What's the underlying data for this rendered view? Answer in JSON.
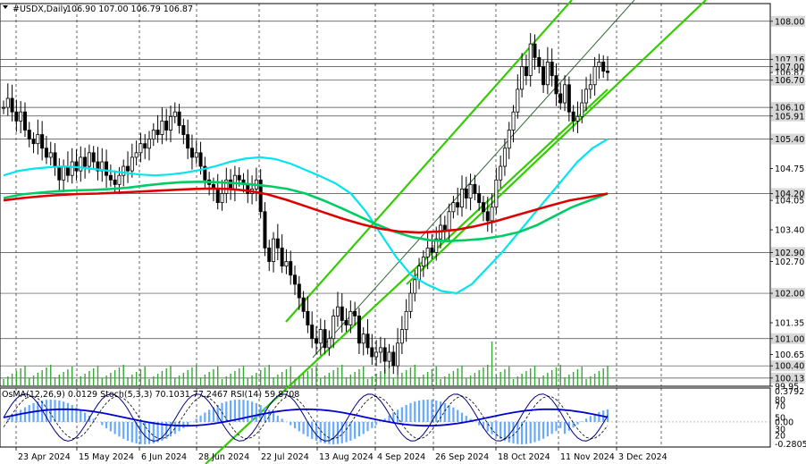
{
  "header": {
    "symbol": "#USDX,Daily",
    "ohlc": "106.90 107.00 106.79 106.87"
  },
  "osc_header": "OsMA(12,26,9) 0.0129  Stoch(5,3,3) 70.1031 77.2467  RSI(14) 59.8708",
  "colors": {
    "candle": "#000000",
    "ma_fast": "#00e5ee",
    "ma_mid": "#00cc66",
    "ma_slow": "#dd0000",
    "channel": "#33cc00",
    "volume": "#33aa33",
    "grid": "#000000",
    "osma_bar": "#66aaff",
    "stoch_main": "#000080",
    "stoch_signal": "#000000",
    "rsi": "#0000cc"
  },
  "chart_data": {
    "type": "line",
    "title": "#USDX,Daily",
    "price_axis": {
      "ylim": [
        99.95,
        108.39
      ],
      "ticks": [
        "108.00",
        "107.16",
        "107.00",
        "106.87",
        "106.70",
        "106.10",
        "105.91",
        "105.40",
        "104.75",
        "104.20",
        "104.05",
        "103.40",
        "102.90",
        "102.70",
        "102.00",
        "101.35",
        "101.00",
        "100.65",
        "100.40",
        "100.13",
        "99.95"
      ],
      "levels": [
        108.0,
        107.16,
        107.0,
        106.7,
        106.1,
        105.91,
        105.4,
        104.2,
        102.9,
        102.0,
        101.0,
        100.4,
        100.13
      ]
    },
    "x_labels": [
      "23 Apr 2024",
      "15 May 2024",
      "6 Jun 2024",
      "28 Jun 2024",
      "22 Jul 2024",
      "13 Aug 2024",
      "4 Sep 2024",
      "26 Sep 2024",
      "18 Oct 2024",
      "11 Nov 2024",
      "3 Dec 2024"
    ],
    "close": [
      106.1,
      106.3,
      106.0,
      105.8,
      106.0,
      105.6,
      105.4,
      105.3,
      105.5,
      105.2,
      105.0,
      105.1,
      104.8,
      104.5,
      104.8,
      104.6,
      104.9,
      104.7,
      105.0,
      104.8,
      105.1,
      104.9,
      104.7,
      104.9,
      104.6,
      104.5,
      104.4,
      104.6,
      104.8,
      104.7,
      105.0,
      105.1,
      105.3,
      105.2,
      105.4,
      105.6,
      105.5,
      105.8,
      105.6,
      105.9,
      106.0,
      105.7,
      105.5,
      105.2,
      105.0,
      105.1,
      104.8,
      104.5,
      104.4,
      104.3,
      104.0,
      104.2,
      104.5,
      104.3,
      104.6,
      104.5,
      104.4,
      104.2,
      104.3,
      104.5,
      103.8,
      103.0,
      102.7,
      103.2,
      103.0,
      102.6,
      102.7,
      102.4,
      102.2,
      101.9,
      101.6,
      101.3,
      101.0,
      100.9,
      101.2,
      100.8,
      101.0,
      101.5,
      101.7,
      101.4,
      101.3,
      101.6,
      101.5,
      100.9,
      101.1,
      100.8,
      100.6,
      100.7,
      100.8,
      100.5,
      100.7,
      100.4,
      100.9,
      101.2,
      101.6,
      102.0,
      102.3,
      102.6,
      102.8,
      103.0,
      102.9,
      103.2,
      103.5,
      103.4,
      103.8,
      104.0,
      103.9,
      104.3,
      104.1,
      104.4,
      104.2,
      104.0,
      103.8,
      103.6,
      103.9,
      104.5,
      104.8,
      105.2,
      105.6,
      106.0,
      106.5,
      107.0,
      106.8,
      107.5,
      107.2,
      107.0,
      106.6,
      107.1,
      106.8,
      106.4,
      106.2,
      106.6,
      106.0,
      105.8,
      105.9,
      106.2,
      106.5,
      106.6,
      107.0,
      107.1,
      106.9,
      106.87
    ],
    "series": [
      {
        "name": "",
        "kind": "ma_fast",
        "values": [
          104.6,
          104.7,
          104.75,
          104.78,
          104.8,
          104.78,
          104.74,
          104.7,
          104.66,
          104.62,
          104.6,
          104.62,
          104.66,
          104.72,
          104.8,
          104.9,
          104.97,
          105.0,
          104.96,
          104.86,
          104.72,
          104.58,
          104.42,
          104.2,
          103.8,
          103.3,
          102.8,
          102.4,
          102.2,
          102.05,
          102.0,
          102.2,
          102.55,
          102.9,
          103.3,
          103.7,
          104.1,
          104.5,
          104.9,
          105.2,
          105.4
        ]
      },
      {
        "name": "",
        "kind": "ma_mid",
        "values": [
          104.1,
          104.18,
          104.22,
          104.25,
          104.27,
          104.28,
          104.3,
          104.33,
          104.38,
          104.42,
          104.45,
          104.46,
          104.45,
          104.43,
          104.4,
          104.36,
          104.3,
          104.2,
          104.05,
          103.88,
          103.7,
          103.52,
          103.36,
          103.24,
          103.17,
          103.15,
          103.17,
          103.2,
          103.26,
          103.35,
          103.5,
          103.7,
          103.9,
          104.05,
          104.2
        ]
      },
      {
        "name": "",
        "kind": "ma_slow",
        "values": [
          104.05,
          104.1,
          104.14,
          104.17,
          104.19,
          104.2,
          104.22,
          104.24,
          104.26,
          104.28,
          104.3,
          104.31,
          104.3,
          104.26,
          104.18,
          104.06,
          103.92,
          103.78,
          103.64,
          103.52,
          103.42,
          103.36,
          103.34,
          103.36,
          103.4,
          103.48,
          103.58,
          103.7,
          103.82,
          103.94,
          104.05,
          104.12,
          104.2
        ]
      }
    ],
    "channel": {
      "lower": [
        [
          230,
          519
        ],
        [
          680,
          100
        ]
      ],
      "upper": [
        [
          320,
          360
        ],
        [
          640,
          0
        ]
      ],
      "inner": [
        [
          350,
          400
        ],
        [
          710,
          0
        ]
      ],
      "right_outer": [
        [
          455,
          318
        ],
        [
          790,
          0
        ]
      ]
    },
    "oscillator": {
      "osma_ylim": [
        -0.2805,
        0.3792
      ],
      "osma_ticks": [
        "0.3792",
        "0.00",
        "-0.2805"
      ],
      "stoch_ticks": [
        "80",
        "70",
        "50",
        "30",
        "20"
      ]
    }
  }
}
